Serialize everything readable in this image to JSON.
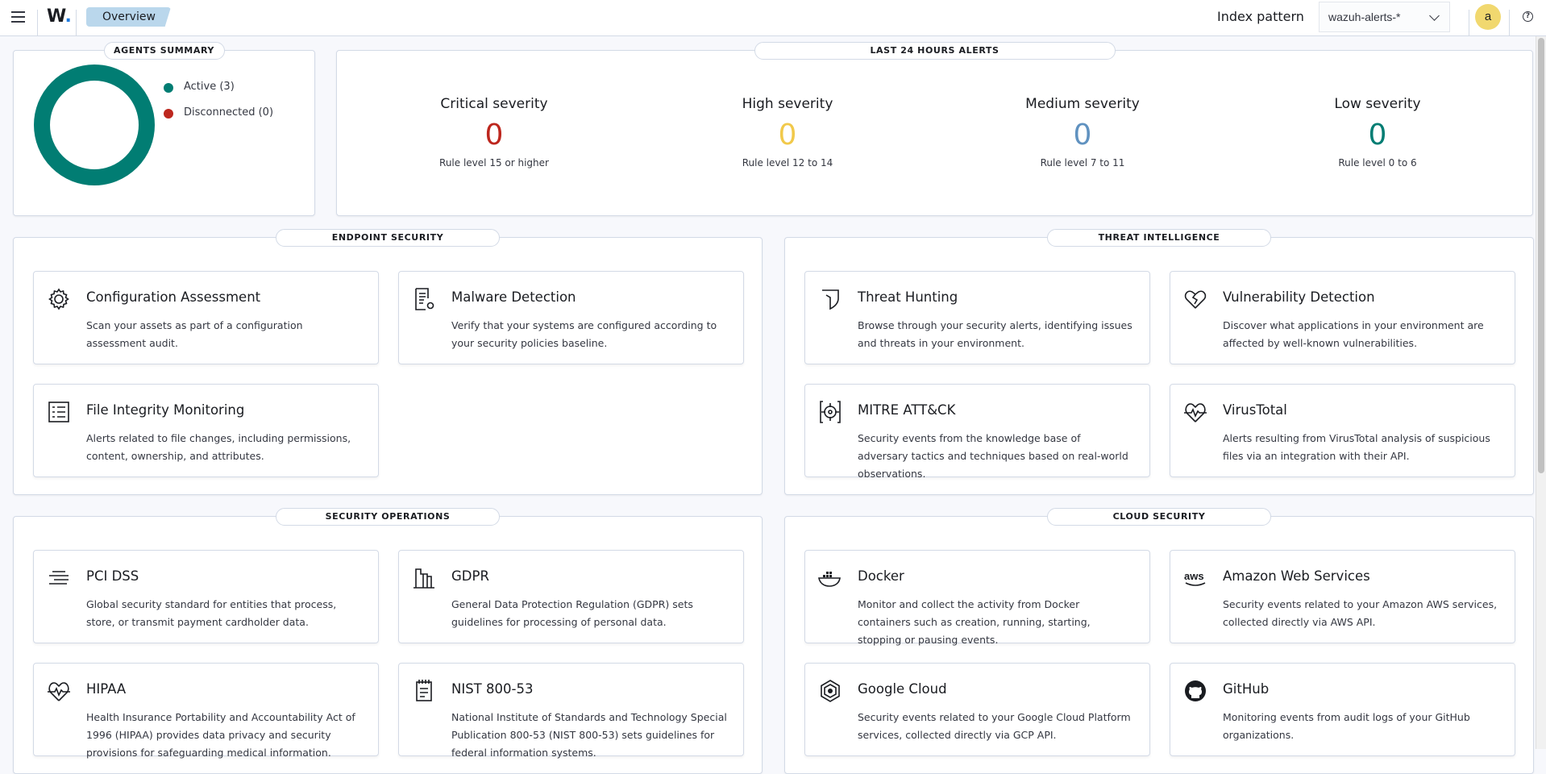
{
  "header": {
    "breadcrumb": "Overview",
    "logo": "W",
    "index_pattern_label": "Index pattern",
    "index_pattern_value": "wazuh-alerts-*",
    "avatar": "a",
    "help": "?"
  },
  "agents_summary": {
    "title": "AGENTS SUMMARY",
    "active_label": "Active (3)",
    "disconnected_label": "Disconnected (0)",
    "active": 3,
    "disconnected": 0,
    "colors": {
      "active": "#017d73",
      "disconnected": "#bd271e"
    }
  },
  "alerts": {
    "title": "LAST 24 HOURS ALERTS",
    "items": [
      {
        "title": "Critical severity",
        "value": "0",
        "sub": "Rule level 15 or higher",
        "color": "#bd271e"
      },
      {
        "title": "High severity",
        "value": "0",
        "sub": "Rule level 12 to 14",
        "color": "#f1c94b"
      },
      {
        "title": "Medium severity",
        "value": "0",
        "sub": "Rule level 7 to 11",
        "color": "#6092c0"
      },
      {
        "title": "Low severity",
        "value": "0",
        "sub": "Rule level 0 to 6",
        "color": "#017d73"
      }
    ]
  },
  "sections": [
    {
      "title": "ENDPOINT SECURITY",
      "cards": [
        {
          "icon": "gear-icon",
          "title": "Configuration Assessment",
          "desc": "Scan your assets as part of a configuration assessment audit."
        },
        {
          "icon": "document-gear-icon",
          "title": "Malware Detection",
          "desc": "Verify that your systems are configured according to your security policies baseline."
        },
        {
          "icon": "list-icon",
          "title": "File Integrity Monitoring",
          "desc": "Alerts related to file changes, including permissions, content, ownership, and attributes."
        }
      ]
    },
    {
      "title": "THREAT INTELLIGENCE",
      "cards": [
        {
          "icon": "shield-icon",
          "title": "Threat Hunting",
          "desc": "Browse through your security alerts, identifying issues and threats in your environment."
        },
        {
          "icon": "broken-heart-icon",
          "title": "Vulnerability Detection",
          "desc": "Discover what applications in your environment are affected by well-known vulnerabilities."
        },
        {
          "icon": "crosshair-icon",
          "title": "MITRE ATT&CK",
          "desc": "Security events from the knowledge base of adversary tactics and techniques based on real-world observations."
        },
        {
          "icon": "heartbeat-icon",
          "title": "VirusTotal",
          "desc": "Alerts resulting from VirusTotal analysis of suspicious files via an integration with their API."
        }
      ]
    },
    {
      "title": "SECURITY OPERATIONS",
      "cards": [
        {
          "icon": "lines-icon",
          "title": "PCI DSS",
          "desc": "Global security standard for entities that process, store, or transmit payment cardholder data."
        },
        {
          "icon": "building-icon",
          "title": "GDPR",
          "desc": "General Data Protection Regulation (GDPR) sets guidelines for processing of personal data."
        },
        {
          "icon": "heartbeat-icon",
          "title": "HIPAA",
          "desc": "Health Insurance Portability and Accountability Act of 1996 (HIPAA) provides data privacy and security provisions for safeguarding medical information."
        },
        {
          "icon": "notepad-icon",
          "title": "NIST 800-53",
          "desc": "National Institute of Standards and Technology Special Publication 800-53 (NIST 800-53) sets guidelines for federal information systems."
        }
      ]
    },
    {
      "title": "CLOUD SECURITY",
      "cards": [
        {
          "icon": "docker-icon",
          "title": "Docker",
          "desc": "Monitor and collect the activity from Docker containers such as creation, running, starting, stopping or pausing events."
        },
        {
          "icon": "aws-icon",
          "title": "Amazon Web Services",
          "desc": "Security events related to your Amazon AWS services, collected directly via AWS API."
        },
        {
          "icon": "google-cloud-icon",
          "title": "Google Cloud",
          "desc": "Security events related to your Google Cloud Platform services, collected directly via GCP API."
        },
        {
          "icon": "github-icon",
          "title": "GitHub",
          "desc": "Monitoring events from audit logs of your GitHub organizations."
        }
      ]
    }
  ]
}
